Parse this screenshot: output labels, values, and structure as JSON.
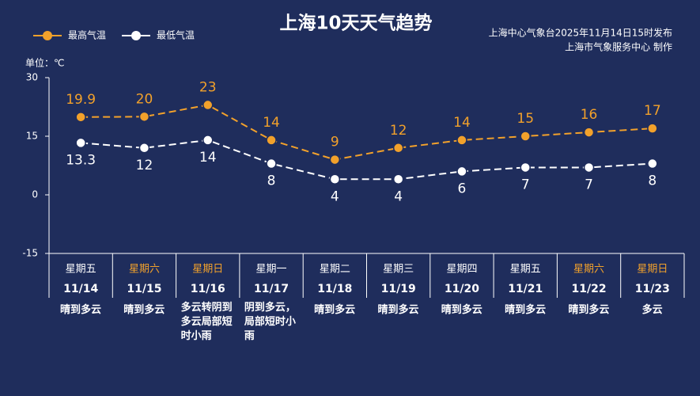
{
  "chart_data": {
    "type": "line",
    "title": "上海10天天气趋势",
    "source": [
      "上海中心气象台2025年11月14日15时发布",
      "上海市气象服务中心  制作"
    ],
    "unit_label": "单位：℃",
    "categories": [
      "11/14",
      "11/15",
      "11/16",
      "11/17",
      "11/18",
      "11/19",
      "11/20",
      "11/21",
      "11/22",
      "11/23"
    ],
    "weekdays": [
      "星期五",
      "星期六",
      "星期日",
      "星期一",
      "星期二",
      "星期三",
      "星期四",
      "星期五",
      "星期六",
      "星期日"
    ],
    "weekday_colors": [
      "#ffffff",
      "#f2a12b",
      "#f2a12b",
      "#ffffff",
      "#ffffff",
      "#ffffff",
      "#ffffff",
      "#ffffff",
      "#f2a12b",
      "#f2a12b"
    ],
    "weather": [
      "晴到多云",
      "晴到多云",
      "多云转阴到多云局部短时小雨",
      "阴到多云，局部短时小雨",
      "晴到多云",
      "晴到多云",
      "晴到多云",
      "晴到多云",
      "晴到多云",
      "多云"
    ],
    "series": [
      {
        "name": "最高气温",
        "color": "#f2a12b",
        "values": [
          19.9,
          20,
          23,
          14,
          9,
          12,
          14,
          15,
          16,
          17
        ]
      },
      {
        "name": "最低气温",
        "color": "#ffffff",
        "values": [
          13.3,
          12,
          14,
          8,
          4,
          4,
          6,
          7,
          7,
          8
        ]
      }
    ],
    "ylim": [
      -15,
      30
    ],
    "yticks": [
      -15,
      0,
      15,
      30
    ]
  }
}
